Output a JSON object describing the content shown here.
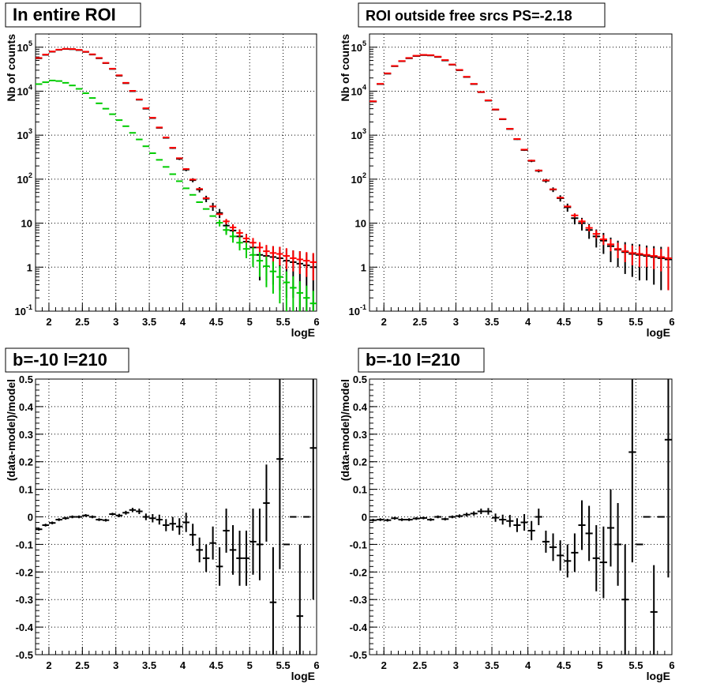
{
  "chart_data": [
    {
      "type": "scatter",
      "title": "In entire ROI",
      "xlabel": "logE",
      "ylabel": "Nb of counts",
      "xlim": [
        1.8,
        6.0
      ],
      "ylim": [
        0.1,
        200000
      ],
      "yscale": "log",
      "grid": true,
      "x_ticks": [
        "2",
        "2.5",
        "3",
        "3.5",
        "4",
        "4.5",
        "5",
        "5.5",
        "6"
      ],
      "y_ticks": [
        "10^-1",
        "1",
        "10",
        "10^2",
        "10^3",
        "10^4",
        "10^5"
      ],
      "x": [
        1.85,
        1.95,
        2.05,
        2.15,
        2.25,
        2.35,
        2.45,
        2.55,
        2.65,
        2.75,
        2.85,
        2.95,
        3.05,
        3.15,
        3.25,
        3.35,
        3.45,
        3.55,
        3.65,
        3.75,
        3.85,
        3.95,
        4.05,
        4.15,
        4.25,
        4.35,
        4.45,
        4.55,
        4.65,
        4.75,
        4.85,
        4.95,
        5.05,
        5.15,
        5.25,
        5.35,
        5.45,
        5.55,
        5.65,
        5.75,
        5.85,
        5.95
      ],
      "series": [
        {
          "color": "#000000",
          "values": [
            56000,
            67000,
            79000,
            87000,
            91000,
            90000,
            86000,
            78000,
            68000,
            56000,
            43500,
            32000,
            22500,
            15200,
            10000,
            6400,
            4000,
            2450,
            1470,
            870,
            510,
            290,
            165,
            95,
            58,
            36,
            24,
            17,
            8.8,
            6.8,
            5.0,
            3.8,
            2.8,
            1.9,
            1.8,
            1.7,
            1.6,
            1.4,
            1.3,
            1.2,
            1.1,
            1.0
          ],
          "errors": [
            300,
            300,
            300,
            300,
            300,
            300,
            300,
            300,
            300,
            300,
            200,
            200,
            150,
            120,
            100,
            80,
            60,
            50,
            40,
            30,
            22,
            17,
            13,
            10,
            8,
            6,
            5,
            4,
            3,
            2.6,
            2.2,
            1.9,
            1.7,
            1.4,
            1.3,
            1.3,
            1.3,
            1.2,
            1.1,
            1.1,
            1.0,
            1.0
          ]
        },
        {
          "color": "#ff0000",
          "values": [
            57000,
            68000,
            80000,
            88000,
            92000,
            91000,
            87000,
            79000,
            69000,
            57000,
            44000,
            32500,
            23000,
            15500,
            10200,
            6500,
            4100,
            2500,
            1500,
            890,
            520,
            300,
            170,
            98,
            60,
            37,
            24,
            16,
            11,
            8,
            6,
            4.5,
            3.6,
            2.8,
            2.3,
            2.1,
            2.0,
            1.8,
            1.6,
            1.5,
            1.4,
            1.3
          ],
          "errors": [
            0,
            0,
            0,
            0,
            0,
            0,
            0,
            0,
            0,
            0,
            0,
            0,
            0,
            0,
            0,
            0,
            0,
            0,
            0,
            0,
            0,
            0,
            0,
            0,
            0,
            0,
            0,
            1,
            1.5,
            1.4,
            1.2,
            1.1,
            1.0,
            0.9,
            0.9,
            0.9,
            0.9,
            0.9,
            0.8,
            0.8,
            0.8,
            0.8
          ]
        },
        {
          "color": "#00cc00",
          "values": [
            14500,
            16000,
            17500,
            17000,
            15500,
            13500,
            11300,
            9000,
            7000,
            5300,
            4000,
            3000,
            2200,
            1600,
            1130,
            800,
            560,
            390,
            275,
            190,
            130,
            90,
            62,
            44,
            30,
            21,
            14.5,
            10.2,
            7,
            5,
            3.6,
            2.6,
            1.9,
            1.4,
            1.05,
            0.8,
            0.6,
            0.45,
            0.34,
            0.26,
            0.2,
            0.15
          ],
          "errors": [
            0,
            0,
            0,
            0,
            0,
            0,
            0,
            0,
            0,
            0,
            0,
            0,
            0,
            0,
            0,
            0,
            0,
            0,
            0,
            0,
            0,
            0,
            0,
            0,
            0,
            0,
            0,
            1.8,
            1.6,
            1.4,
            1.2,
            1.0,
            0.9,
            0.8,
            0.7,
            0.55,
            0.45,
            0.35,
            0.28,
            0.22,
            0.18,
            0.14
          ]
        }
      ]
    },
    {
      "type": "scatter",
      "title": "ROI outside free srcs PS=-2.18",
      "xlabel": "logE",
      "ylabel": "Nb of counts",
      "xlim": [
        1.8,
        6.0
      ],
      "ylim": [
        0.1,
        200000
      ],
      "yscale": "log",
      "grid": true,
      "x_ticks": [
        "2",
        "2.5",
        "3",
        "3.5",
        "4",
        "4.5",
        "5",
        "5.5",
        "6"
      ],
      "y_ticks": [
        "10^-1",
        "1",
        "10",
        "10^2",
        "10^3",
        "10^4",
        "10^5"
      ],
      "x": [
        1.85,
        1.95,
        2.05,
        2.15,
        2.25,
        2.35,
        2.45,
        2.55,
        2.65,
        2.75,
        2.85,
        2.95,
        3.05,
        3.15,
        3.25,
        3.35,
        3.45,
        3.55,
        3.65,
        3.75,
        3.85,
        3.95,
        4.05,
        4.15,
        4.25,
        4.35,
        4.45,
        4.55,
        4.65,
        4.75,
        4.85,
        4.95,
        5.05,
        5.15,
        5.25,
        5.35,
        5.45,
        5.55,
        5.65,
        5.75,
        5.85,
        5.95
      ],
      "series": [
        {
          "color": "#000000",
          "values": [
            5800,
            14500,
            25000,
            37000,
            48000,
            56000,
            63000,
            66000,
            65000,
            60000,
            50000,
            40000,
            30000,
            21000,
            14500,
            9500,
            6100,
            3800,
            2300,
            1380,
            810,
            460,
            260,
            155,
            92,
            58,
            37,
            23,
            13,
            10,
            7,
            5,
            4,
            3,
            2.5,
            2.2,
            2.0,
            1.9,
            1.8,
            1.7,
            1.6,
            1.5
          ],
          "errors": [
            80,
            120,
            150,
            190,
            220,
            240,
            250,
            260,
            260,
            250,
            220,
            200,
            170,
            150,
            120,
            100,
            80,
            60,
            50,
            38,
            28,
            21,
            16,
            12,
            9,
            7,
            6,
            4.8,
            3.6,
            3.2,
            2.6,
            2.2,
            2,
            1.7,
            1.5,
            1.5,
            1.4,
            1.4,
            1.3,
            1.3,
            1.3,
            1.2
          ]
        },
        {
          "color": "#ff0000",
          "values": [
            5900,
            14700,
            25500,
            37500,
            48500,
            57000,
            64000,
            67000,
            66000,
            61000,
            51000,
            40500,
            30500,
            21300,
            14700,
            9600,
            6200,
            3850,
            2330,
            1400,
            820,
            470,
            265,
            158,
            94,
            59,
            38,
            24,
            15,
            11,
            7.8,
            5.7,
            4.3,
            3.3,
            2.6,
            2.3,
            2.1,
            2.0,
            1.9,
            1.8,
            1.7,
            1.6
          ],
          "errors": [
            0,
            0,
            0,
            0,
            0,
            0,
            0,
            0,
            0,
            0,
            0,
            0,
            0,
            0,
            0,
            0,
            0,
            0,
            0,
            0,
            0,
            0,
            0,
            0,
            0,
            0,
            0,
            1.2,
            1.6,
            1.5,
            1.3,
            1.2,
            1.1,
            1.0,
            1.0,
            1.0,
            1.0,
            1.0,
            0.9,
            0.9,
            0.9,
            1.3
          ]
        }
      ]
    },
    {
      "type": "scatter",
      "title": "b=-10 l=210",
      "xlabel": "logE",
      "ylabel": "(data-model)/model",
      "xlim": [
        1.8,
        6.0
      ],
      "ylim": [
        -0.5,
        0.5
      ],
      "grid": true,
      "x_ticks": [
        "2",
        "2.5",
        "3",
        "3.5",
        "4",
        "4.5",
        "5",
        "5.5",
        "6"
      ],
      "y_ticks": [
        "-0.5",
        "-0.4",
        "-0.3",
        "-0.2",
        "-0.1",
        "0",
        "0.1",
        "0.2",
        "0.3",
        "0.4",
        "0.5"
      ],
      "x": [
        1.85,
        1.95,
        2.05,
        2.15,
        2.25,
        2.35,
        2.45,
        2.55,
        2.65,
        2.75,
        2.85,
        2.95,
        3.05,
        3.15,
        3.25,
        3.35,
        3.45,
        3.55,
        3.65,
        3.75,
        3.85,
        3.95,
        4.05,
        4.15,
        4.25,
        4.35,
        4.45,
        4.55,
        4.65,
        4.75,
        4.85,
        4.95,
        5.05,
        5.15,
        5.25,
        5.35,
        5.45,
        5.55,
        5.65,
        5.75,
        5.85,
        5.95
      ],
      "series": [
        {
          "color": "#000000",
          "values": [
            -0.045,
            -0.03,
            -0.022,
            -0.01,
            -0.005,
            0.0,
            0.0,
            0.005,
            0.0,
            -0.01,
            -0.012,
            0.01,
            0.005,
            0.015,
            0.025,
            0.02,
            0.0,
            -0.005,
            -0.01,
            -0.03,
            -0.025,
            -0.035,
            -0.02,
            -0.065,
            -0.12,
            -0.15,
            -0.095,
            -0.18,
            -0.05,
            -0.12,
            -0.15,
            -0.15,
            -0.09,
            -0.1,
            0.05,
            -0.31,
            0.21,
            -0.1,
            0.0,
            -0.36,
            0.0,
            0.25
          ],
          "errors": [
            0.005,
            0.005,
            0.005,
            0.005,
            0.005,
            0.005,
            0.005,
            0.005,
            0.005,
            0.005,
            0.005,
            0.005,
            0.006,
            0.007,
            0.008,
            0.01,
            0.012,
            0.015,
            0.018,
            0.022,
            0.025,
            0.03,
            0.035,
            0.04,
            0.045,
            0.05,
            0.06,
            0.07,
            0.08,
            0.09,
            0.1,
            0.1,
            0.12,
            0.13,
            0.14,
            0.2,
            0.4,
            0.0,
            0.0,
            0.26,
            0.0,
            0.55
          ]
        }
      ]
    },
    {
      "type": "scatter",
      "title": "b=-10 l=210",
      "xlabel": "logE",
      "ylabel": "(data-model)/model",
      "xlim": [
        1.8,
        6.0
      ],
      "ylim": [
        -0.5,
        0.5
      ],
      "grid": true,
      "x_ticks": [
        "2",
        "2.5",
        "3",
        "3.5",
        "4",
        "4.5",
        "5",
        "5.5",
        "6"
      ],
      "y_ticks": [
        "-0.5",
        "-0.4",
        "-0.3",
        "-0.2",
        "-0.1",
        "0",
        "0.1",
        "0.2",
        "0.3",
        "0.4",
        "0.5"
      ],
      "x": [
        1.85,
        1.95,
        2.05,
        2.15,
        2.25,
        2.35,
        2.45,
        2.55,
        2.65,
        2.75,
        2.85,
        2.95,
        3.05,
        3.15,
        3.25,
        3.35,
        3.45,
        3.55,
        3.65,
        3.75,
        3.85,
        3.95,
        4.05,
        4.15,
        4.25,
        4.35,
        4.45,
        4.55,
        4.65,
        4.75,
        4.85,
        4.95,
        5.05,
        5.15,
        5.25,
        5.35,
        5.45,
        5.55,
        5.65,
        5.75,
        5.85,
        5.95
      ],
      "series": [
        {
          "color": "#000000",
          "values": [
            -0.012,
            -0.01,
            -0.012,
            -0.005,
            -0.01,
            -0.01,
            -0.006,
            -0.004,
            -0.01,
            0.0,
            -0.008,
            0.0,
            0.003,
            0.008,
            0.012,
            0.02,
            0.02,
            -0.003,
            -0.01,
            -0.015,
            -0.03,
            -0.02,
            -0.05,
            0.0,
            -0.09,
            -0.11,
            -0.14,
            -0.16,
            -0.13,
            -0.03,
            -0.06,
            -0.15,
            -0.165,
            -0.04,
            -0.1,
            -0.3,
            0.235,
            -0.1,
            0.0,
            -0.345,
            0.0,
            0.28
          ],
          "errors": [
            0.005,
            0.005,
            0.005,
            0.005,
            0.005,
            0.005,
            0.005,
            0.005,
            0.005,
            0.005,
            0.005,
            0.005,
            0.006,
            0.007,
            0.008,
            0.01,
            0.012,
            0.015,
            0.018,
            0.022,
            0.025,
            0.03,
            0.035,
            0.03,
            0.04,
            0.05,
            0.055,
            0.06,
            0.07,
            0.09,
            0.1,
            0.12,
            0.13,
            0.14,
            0.15,
            0.2,
            0.4,
            0.0,
            0.0,
            0.17,
            0.0,
            0.5
          ]
        }
      ]
    }
  ]
}
